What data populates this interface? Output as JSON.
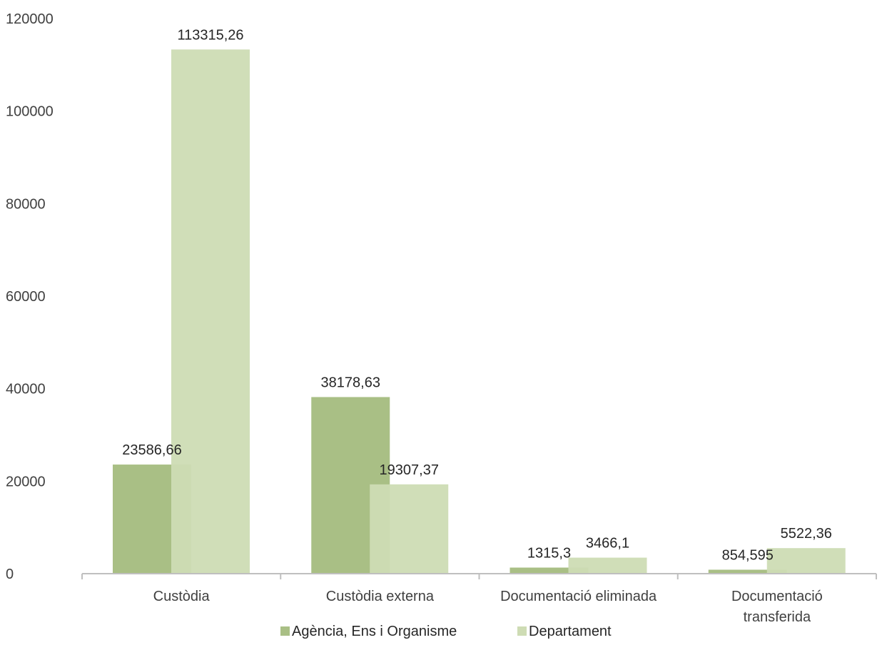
{
  "chart_data": {
    "type": "bar",
    "categories": [
      "Custòdia",
      "Custòdia externa",
      "Documentació eliminada",
      "Documentació transferida"
    ],
    "category_lines": [
      [
        "Custòdia"
      ],
      [
        "Custòdia externa"
      ],
      [
        "Documentació eliminada"
      ],
      [
        "Documentació",
        "transferida"
      ]
    ],
    "series": [
      {
        "name": "Agència, Ens i Organisme",
        "color": "#a9bf85",
        "values": [
          23586.66,
          38178.63,
          1315.3,
          854.595
        ],
        "labels": [
          "23586,66",
          "38178,63",
          "1315,3",
          "854,595"
        ]
      },
      {
        "name": "Departament",
        "color": "#cedcb4",
        "values": [
          113315.26,
          19307.37,
          3466.1,
          5522.36
        ],
        "labels": [
          "113315,26",
          "19307,37",
          "3466,1",
          "5522,36"
        ]
      }
    ],
    "y_ticks": [
      "0",
      "20000",
      "40000",
      "60000",
      "80000",
      "100000",
      "120000"
    ],
    "ylim": [
      0,
      120000
    ],
    "grid": false,
    "legend_position": "bottom",
    "title": "",
    "xlabel": "",
    "ylabel": ""
  }
}
